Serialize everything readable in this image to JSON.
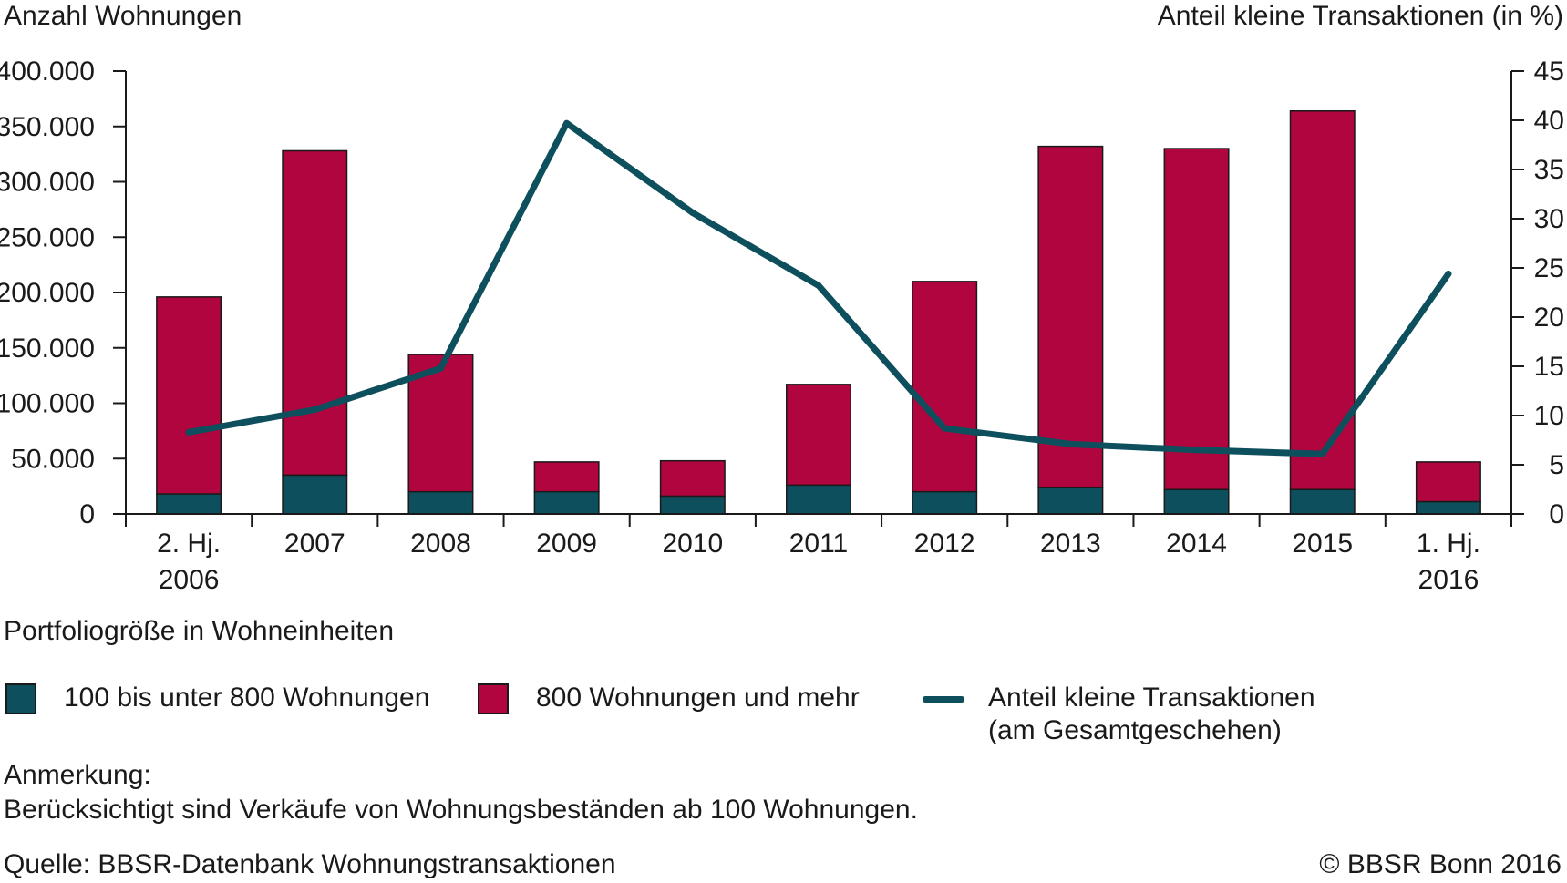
{
  "chart_data": {
    "type": "bar",
    "stacked": true,
    "left_axis_title": "Anzahl Wohnungen",
    "right_axis_title": "Anteil kleine Transaktionen (in %)",
    "categories": [
      [
        "2. Hj.",
        "2006"
      ],
      [
        "2007"
      ],
      [
        "2008"
      ],
      [
        "2009"
      ],
      [
        "2010"
      ],
      [
        "2011"
      ],
      [
        "2012"
      ],
      [
        "2013"
      ],
      [
        "2014"
      ],
      [
        "2015"
      ],
      [
        "1. Hj.",
        "2016"
      ]
    ],
    "left_ylim": [
      0,
      400000
    ],
    "left_ticks": [
      "0",
      "50.000",
      "100.000",
      "150.000",
      "200.000",
      "250.000",
      "300.000",
      "350.000",
      "400.000"
    ],
    "right_ylim": [
      0,
      45
    ],
    "right_ticks": [
      "0",
      "5",
      "10",
      "15",
      "20",
      "25",
      "30",
      "35",
      "40",
      "45"
    ],
    "series": [
      {
        "name": "100 bis unter 800 Wohnungen",
        "type": "bar",
        "axis": "left",
        "color": "#0d4f5c",
        "values": [
          18000,
          35000,
          20000,
          20000,
          16000,
          26000,
          20000,
          24000,
          22000,
          22000,
          11000
        ]
      },
      {
        "name": "800 Wohnungen und mehr",
        "type": "bar",
        "axis": "left",
        "color": "#b0053f",
        "values": [
          178000,
          293000,
          124000,
          27000,
          32000,
          91000,
          190000,
          308000,
          308000,
          342000,
          36000
        ]
      },
      {
        "name": "Anteil kleine Transaktionen (am Gesamtgeschehen)",
        "type": "line",
        "axis": "right",
        "color": "#0d4f5c",
        "values": [
          8.3,
          10.6,
          14.8,
          39.7,
          30.6,
          23.2,
          8.7,
          7.1,
          6.5,
          6.1,
          24.4
        ]
      }
    ],
    "legend_title": "Portfoliogröße in Wohneinheiten",
    "legend_placement": "bottom",
    "grid": false
  },
  "legend": {
    "item1": "100 bis unter 800 Wohnungen",
    "item2": "800 Wohnungen und mehr",
    "item3_line1": "Anteil kleine Transaktionen",
    "item3_line2": "(am Gesamtgeschehen)"
  },
  "notes": {
    "title": "Anmerkung:",
    "text": "Berücksichtigt sind Verkäufe von Wohnungsbeständen ab 100 Wohnungen."
  },
  "footer": {
    "source": "Quelle: BBSR-Datenbank Wohnungstransaktionen",
    "copyright": "© BBSR Bonn 2016"
  }
}
